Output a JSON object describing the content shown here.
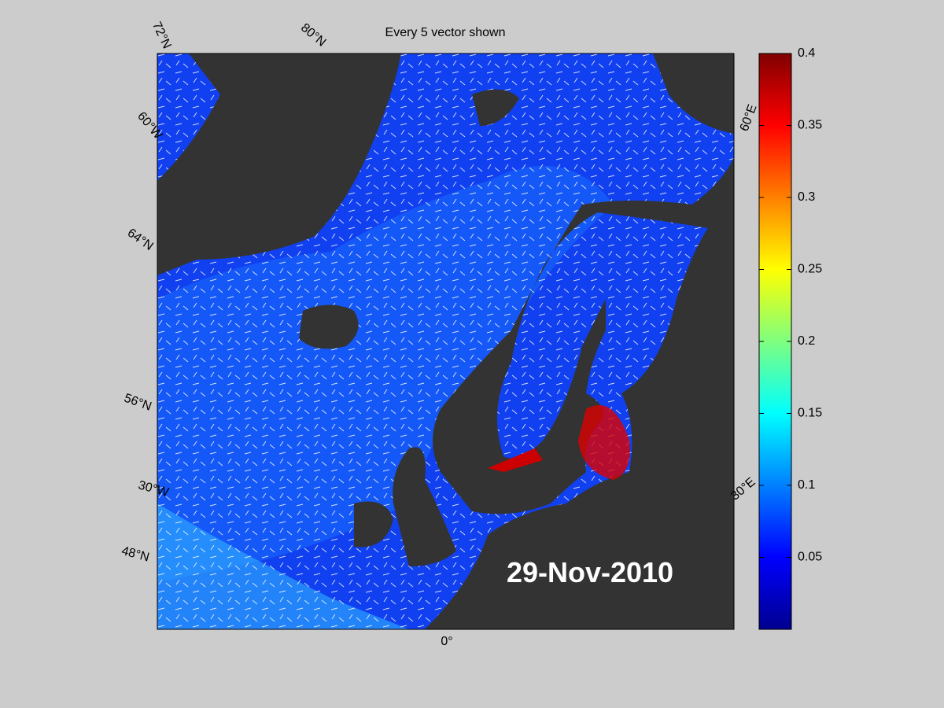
{
  "map": {
    "title": "Every 5 vector shown",
    "date": "29-Nov-2010",
    "graticule_labels": [
      "72°N",
      "80°N",
      "60°W",
      "64°N",
      "56°N",
      "30°W",
      "48°N",
      "0°",
      "30°E",
      "60°E"
    ],
    "colorbar": {
      "lim": [
        0,
        0.4
      ],
      "ticks": [
        0.05,
        0.1,
        0.15,
        0.2,
        0.25,
        0.3,
        0.35,
        0.4
      ]
    }
  }
}
